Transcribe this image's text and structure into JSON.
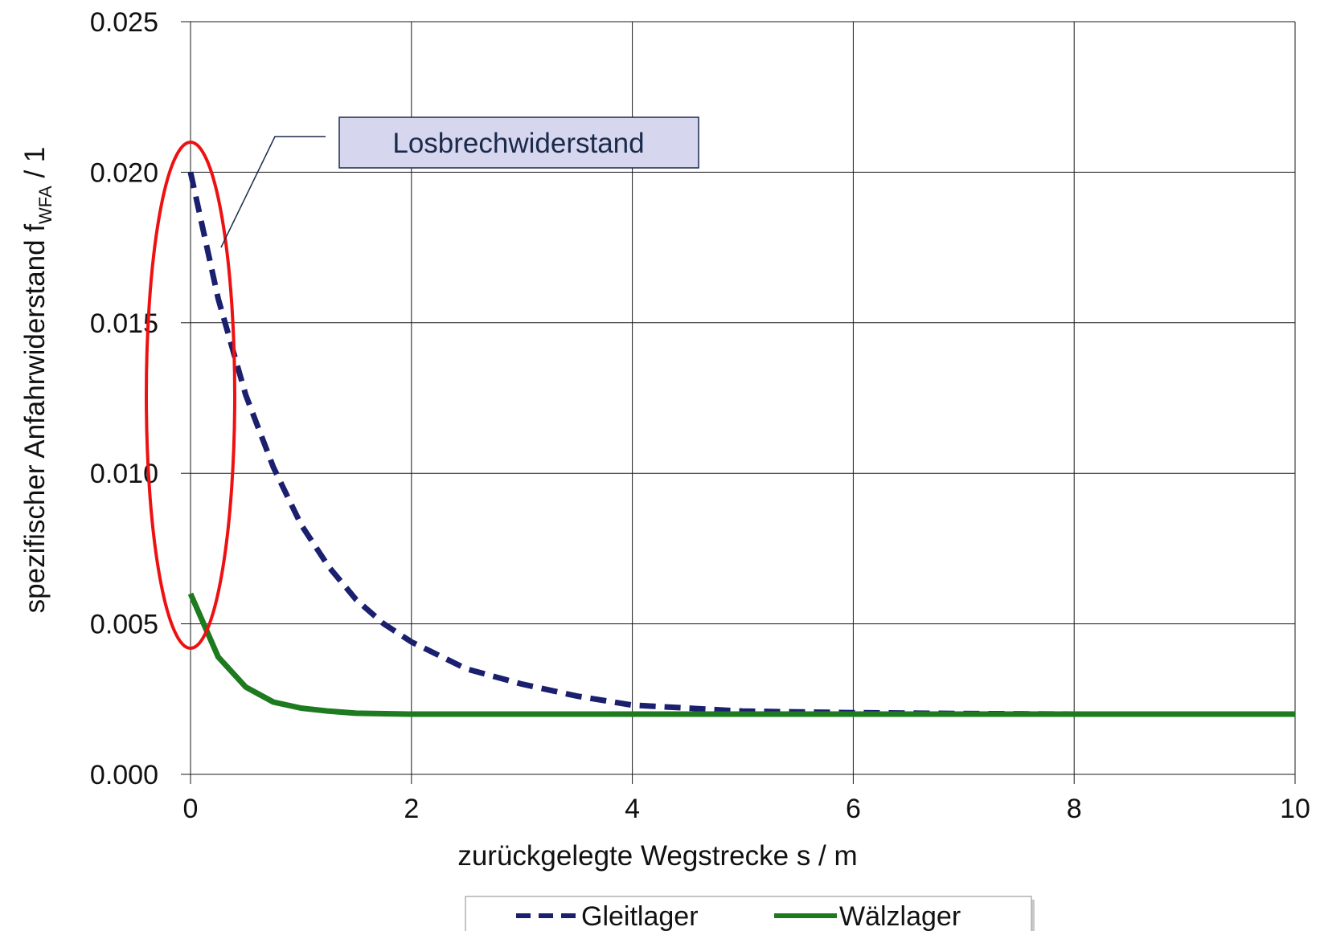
{
  "chart_data": {
    "type": "line",
    "xlabel": "zurückgelegte Wegstrecke s / m",
    "ylabel": {
      "prefix": "spezifischer Anfahrwiderstand f",
      "subscript": "WFA",
      "suffix": " / 1"
    },
    "xlim": [
      0,
      10
    ],
    "ylim": [
      0,
      0.025
    ],
    "x_ticks": [
      0,
      2,
      4,
      6,
      8,
      10
    ],
    "x_tick_labels": [
      "0",
      "2",
      "4",
      "6",
      "8",
      "10"
    ],
    "y_ticks": [
      0,
      0.005,
      0.01,
      0.015,
      0.02,
      0.025
    ],
    "y_tick_labels": [
      "0.000",
      "0.005",
      "0.010",
      "0.015",
      "0.020",
      "0.025"
    ],
    "grid": true,
    "legend_position": "bottom",
    "series": [
      {
        "name": "Gleitlager",
        "color": "#1a1f6e",
        "style": "dashed",
        "x": [
          0,
          0.25,
          0.5,
          0.75,
          1.0,
          1.25,
          1.5,
          1.75,
          2.0,
          2.5,
          3.0,
          3.5,
          4.0,
          4.5,
          5.0,
          6.0,
          7.0,
          8.0,
          9.0,
          10.0
        ],
        "values": [
          0.02,
          0.0158,
          0.0126,
          0.0102,
          0.0083,
          0.0069,
          0.0058,
          0.005,
          0.0044,
          0.0035,
          0.003,
          0.0026,
          0.0023,
          0.0022,
          0.0021,
          0.00205,
          0.00202,
          0.002,
          0.002,
          0.002
        ]
      },
      {
        "name": "Wälzlager",
        "color": "#1e7a1e",
        "style": "solid",
        "x": [
          0,
          0.25,
          0.5,
          0.75,
          1.0,
          1.25,
          1.5,
          2.0,
          3.0,
          4.0,
          6.0,
          8.0,
          10.0
        ],
        "values": [
          0.006,
          0.0039,
          0.0029,
          0.0024,
          0.0022,
          0.0021,
          0.00203,
          0.002,
          0.002,
          0.002,
          0.002,
          0.002,
          0.002
        ]
      }
    ],
    "annotations": [
      {
        "text": "Losbrechwiderstand",
        "highlight_color": "#ee1111",
        "box_color": "#d6d6ee"
      }
    ]
  }
}
